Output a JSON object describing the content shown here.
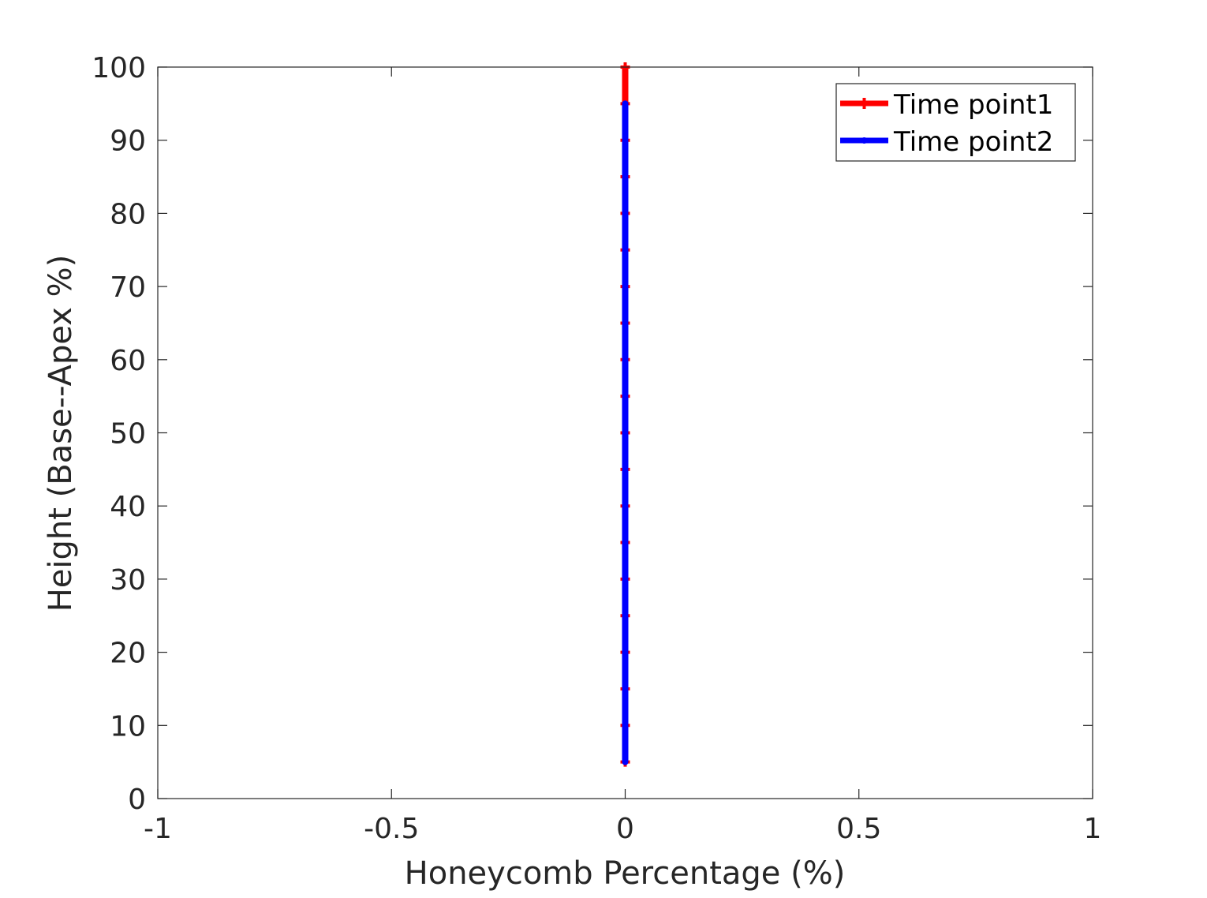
{
  "chart_data": {
    "type": "line",
    "title": "",
    "xlabel": "Honeycomb Percentage (%)",
    "ylabel": "Height (Base--Apex %)",
    "xlim": [
      -1,
      1
    ],
    "ylim": [
      0,
      100
    ],
    "xticks": [
      "-1",
      "-0.5",
      "0",
      "0.5",
      "1"
    ],
    "yticks": [
      "0",
      "10",
      "20",
      "30",
      "40",
      "50",
      "60",
      "70",
      "80",
      "90",
      "100"
    ],
    "grid": false,
    "legend_position": "top-right",
    "series": [
      {
        "name": "Time point1",
        "color": "#ff0000",
        "marker": "plus",
        "x": [
          0,
          0,
          0,
          0,
          0,
          0,
          0,
          0,
          0,
          0,
          0,
          0,
          0,
          0,
          0,
          0,
          0,
          0,
          0,
          0
        ],
        "y": [
          5,
          10,
          15,
          20,
          25,
          30,
          35,
          40,
          45,
          50,
          55,
          60,
          65,
          70,
          75,
          80,
          85,
          90,
          95,
          100
        ]
      },
      {
        "name": "Time point2",
        "color": "#0000ff",
        "marker": "point",
        "x": [
          0,
          0,
          0,
          0,
          0,
          0,
          0,
          0,
          0,
          0,
          0,
          0,
          0,
          0,
          0,
          0,
          0,
          0,
          0
        ],
        "y": [
          5,
          10,
          15,
          20,
          25,
          30,
          35,
          40,
          45,
          50,
          55,
          60,
          65,
          70,
          75,
          80,
          85,
          90,
          95
        ]
      }
    ]
  }
}
